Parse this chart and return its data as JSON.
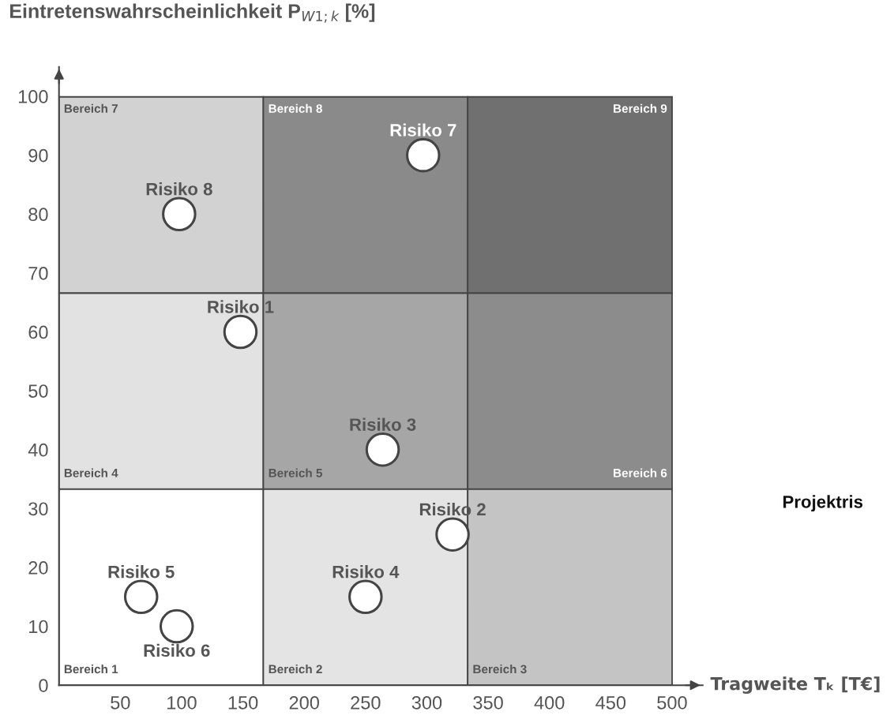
{
  "chart_data": {
    "type": "scatter",
    "xlabel": "Tragweite Tₖ [T€]",
    "ylabel": "Eintretenswahrscheinlichkeit P$_{W1;k}$ [%]",
    "xlim": [
      0,
      525
    ],
    "ylim": [
      0,
      105
    ],
    "xticks": [
      50,
      100,
      150,
      200,
      250,
      300,
      350,
      400,
      450,
      500
    ],
    "yticks": [
      0,
      10,
      20,
      30,
      40,
      50,
      60,
      70,
      80,
      90,
      100
    ],
    "stacked": true,
    "grid": false,
    "marker": "circle",
    "annotations": [
      "Projektris"
    ],
    "series": [
      {
        "type": "bar",
        "x": [
          83.3,
          250,
          416.7
        ],
        "values": [
          33.3,
          33.3,
          33.3
        ],
        "colors": [
          "#ffffff",
          "#e4e4e4",
          "#c4c4c4"
        ],
        "value_labels": [
          "Bereich 1",
          "Bereich 2",
          "Bereich 3"
        ]
      },
      {
        "type": "bar",
        "x": [
          83.3,
          250,
          416.7
        ],
        "values": [
          33.3,
          33.3,
          33.3
        ],
        "colors": [
          "#e2e2e2",
          "#a6a6a6",
          "#8c8c8c"
        ],
        "value_labels": [
          "Bereich 4",
          "Bereich 5",
          "Bereich 6"
        ]
      },
      {
        "type": "bar",
        "x": [
          83.3,
          250,
          416.7
        ],
        "values": [
          33.3,
          33.3,
          33.3
        ],
        "colors": [
          "#d2d2d2",
          "#8a8a8a",
          "#707070"
        ],
        "value_labels": [
          "Bereich 7",
          "Bereich 8",
          "Bereich 9"
        ]
      },
      {
        "color": "#ffffff",
        "x": [
          148,
          321,
          264,
          250,
          67,
          96,
          297,
          98
        ],
        "values": [
          60,
          25.6,
          40,
          15,
          15,
          10,
          90,
          80
        ],
        "value_labels": [
          "Risiko 1",
          "Risiko 2",
          "Risiko 3",
          "Risiko 4",
          "Risiko 5",
          "Risiko 6",
          "Risiko 7",
          "Risiko 8"
        ]
      }
    ]
  }
}
